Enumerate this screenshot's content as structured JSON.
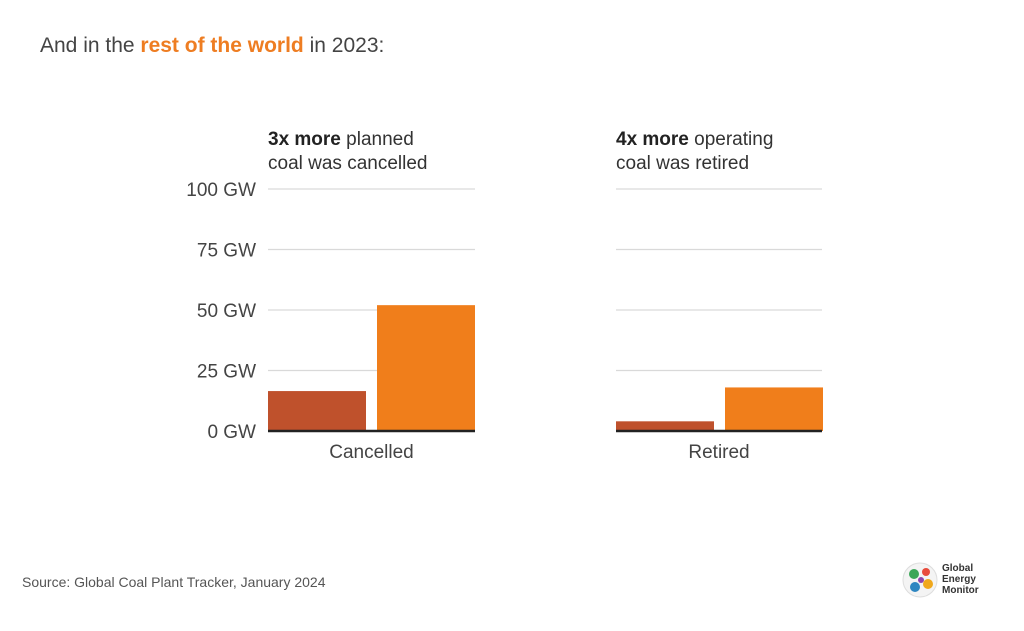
{
  "headline": {
    "prefix": "And in the ",
    "highlight": "rest of the world",
    "suffix": " in 2023:"
  },
  "panels": [
    {
      "bold": "3x more",
      "rest_line1": " planned",
      "line2": "coal was cancelled"
    },
    {
      "bold": "4x more",
      "rest_line1": " operating",
      "line2": "coal was retired"
    }
  ],
  "source": "Source: Global Coal Plant Tracker, January 2024",
  "logo": {
    "line1": "Global",
    "line2": "Energy",
    "line3": "Monitor"
  },
  "colors": {
    "series_dark": "#bf512c",
    "series_orange": "#f07e1b",
    "grid": "#d9d9d9",
    "baseline": "#222222",
    "highlight": "#ee7d22"
  },
  "chart_data": {
    "type": "bar",
    "categories": [
      "Cancelled",
      "Retired"
    ],
    "y_ticks": [
      "0 GW",
      "25 GW",
      "50 GW",
      "75 GW",
      "100 GW"
    ],
    "ylim": [
      0,
      100
    ],
    "y_unit": "GW",
    "grid": true,
    "series": [
      {
        "values": [
          16.5,
          4
        ],
        "color": "#bf512c"
      },
      {
        "values": [
          52,
          18
        ],
        "color": "#f07e1b"
      }
    ]
  }
}
